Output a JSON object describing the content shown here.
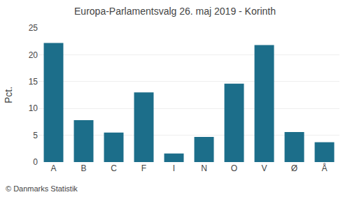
{
  "chart_data": {
    "type": "bar",
    "title": "Europa-Parlamentsvalg 26. maj 2019 - Korinth",
    "categories": [
      "A",
      "B",
      "C",
      "F",
      "I",
      "N",
      "O",
      "V",
      "Ø",
      "Å"
    ],
    "values": [
      22.2,
      7.8,
      5.5,
      13.0,
      1.6,
      4.7,
      14.6,
      21.8,
      5.6,
      3.7
    ],
    "color": "#1c6e8a",
    "ylabel": "Pct.",
    "ylim": [
      0,
      25
    ],
    "yticks": [
      0,
      5,
      10,
      15,
      20,
      25
    ],
    "grid": true,
    "annotations": [
      "© Danmarks Statistik"
    ]
  }
}
